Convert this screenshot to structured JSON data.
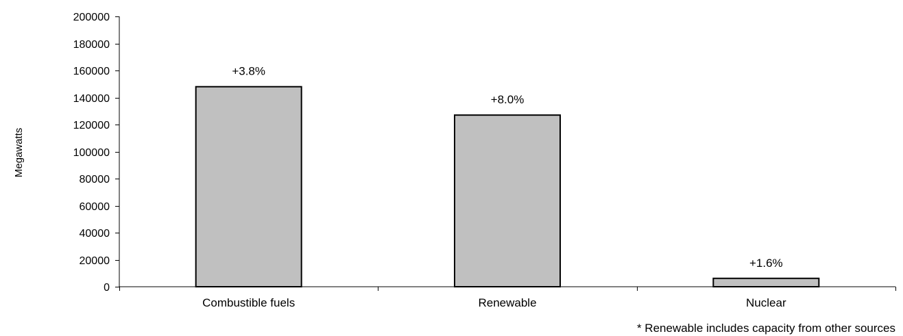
{
  "chart_data": {
    "type": "bar",
    "title": "",
    "xlabel": "",
    "ylabel": "Megawatts",
    "ylim": [
      0,
      200000
    ],
    "yticks": [
      0,
      20000,
      40000,
      60000,
      80000,
      100000,
      120000,
      140000,
      160000,
      180000,
      200000
    ],
    "categories": [
      "Combustible fuels",
      "Renewable",
      "Nuclear"
    ],
    "values": [
      148000,
      127000,
      6200
    ],
    "data_labels": [
      "+3.8%",
      "+8.0%",
      "+1.6%"
    ],
    "footnote": "* Renewable includes capacity from other sources",
    "grid": false,
    "legend": "none",
    "colors": {
      "bar_fill": "#c0c0c0",
      "bar_stroke": "#000000",
      "axis": "#000000"
    }
  }
}
